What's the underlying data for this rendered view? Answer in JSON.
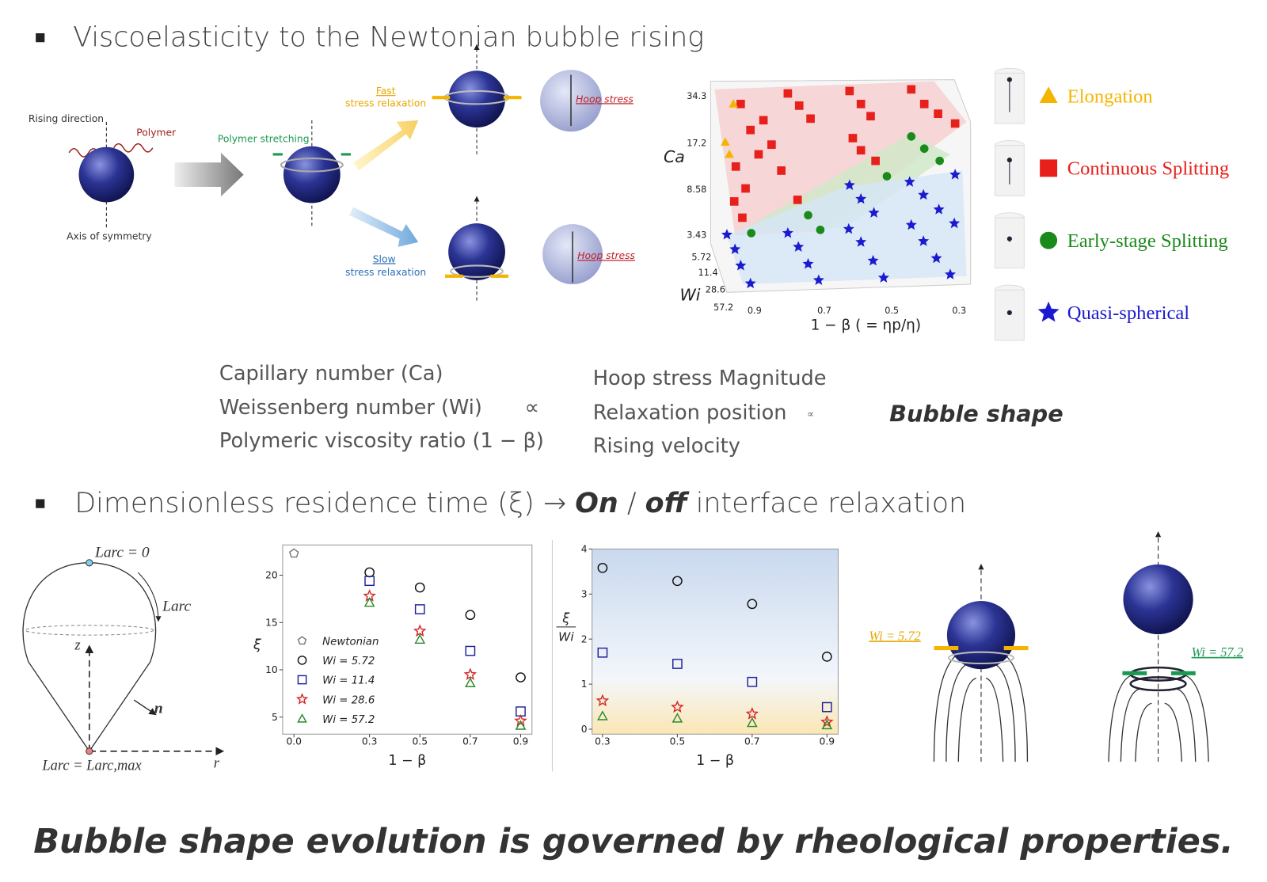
{
  "section1": {
    "bullet": "▪",
    "heading": "Viscoelasticity to the Newtonian bubble rising"
  },
  "schematic": {
    "rising_direction": "Rising direction",
    "polymer": "Polymer",
    "axis": "Axis of symmetry",
    "polymer_stretching": "Polymer stretching",
    "fast": "Fast",
    "fast_relax": "stress relaxation",
    "slow": "Slow",
    "slow_relax": "stress relaxation",
    "hoop_top": "Hoop stress",
    "hoop_bottom": "Hoop stress"
  },
  "phase_diagram": {
    "y_label": "Ca",
    "ca_ticks": [
      "34.3",
      "17.2",
      "8.58",
      "3.43"
    ],
    "wi_label": "Wi",
    "wi_ticks": [
      "5.72",
      "11.4",
      "28.6",
      "57.2"
    ],
    "x_label": "1 − β ( = ηp/η)",
    "x_ticks": [
      "0.9",
      "0.7",
      "0.5",
      "0.3"
    ],
    "legend": [
      {
        "name": "Elongation",
        "color": "#f5b400",
        "marker": "triangle"
      },
      {
        "name": "Continuous Splitting",
        "color": "#e8201c",
        "marker": "square"
      },
      {
        "name": "Early-stage Splitting",
        "color": "#1a8a1a",
        "marker": "circle"
      },
      {
        "name": "Quasi-spherical",
        "color": "#1a1ad0",
        "marker": "star"
      }
    ]
  },
  "relation": {
    "left": [
      "Capillary number (Ca)",
      "Weissenberg number (Wi)",
      "Polymeric viscosity ratio (1 − β)"
    ],
    "symbol1": "∝",
    "middle": [
      "Hoop stress Magnitude",
      "Relaxation position",
      "Rising velocity"
    ],
    "symbol2": "∝",
    "right": "Bubble shape"
  },
  "section2": {
    "bullet": "▪",
    "prefix": "Dimensionless residence time (ξ) →",
    "on": "On",
    "sep": "/",
    "off": "off",
    "suffix": "interface relaxation"
  },
  "geometry": {
    "top": "Larc = 0",
    "arc": "Larc",
    "z": "z",
    "n": "n",
    "r": "r",
    "bottom": "Larc = Larc,max"
  },
  "chart_data": [
    {
      "type": "scatter",
      "x_label": "1 − β",
      "y_label": "ξ",
      "x": [
        0,
        0.3,
        0.5,
        0.7,
        0.9
      ],
      "xlim": [
        -0.045,
        0.945
      ],
      "ylim": [
        3.2,
        23.2
      ],
      "xticks": [
        {
          "value": 0,
          "label": "0.0"
        },
        0.3,
        0.5,
        0.7,
        0.9
      ],
      "yticks": [
        5,
        10,
        15,
        20
      ],
      "series": [
        {
          "name": "Newtonian",
          "color": "#777777",
          "marker": "pentagon",
          "values": [
            22.3,
            null,
            null,
            null,
            null
          ]
        },
        {
          "name": "Wi = 5.72",
          "color": "#111111",
          "marker": "circle",
          "values": [
            null,
            20.3,
            18.7,
            15.8,
            9.2
          ]
        },
        {
          "name": "Wi = 11.4",
          "color": "#1f1f9a",
          "marker": "square",
          "values": [
            null,
            19.4,
            16.4,
            12.0,
            5.6
          ]
        },
        {
          "name": "Wi = 28.6",
          "color": "#d62728",
          "marker": "star",
          "values": [
            null,
            17.8,
            14.1,
            9.5,
            4.6
          ]
        },
        {
          "name": "Wi = 57.2",
          "color": "#2a8a2a",
          "marker": "triangle",
          "values": [
            null,
            17.1,
            13.2,
            8.6,
            4.1
          ]
        }
      ]
    },
    {
      "type": "scatter",
      "x_label": "1 − β",
      "y_label_num": "ξ",
      "y_label_den": "Wi",
      "x": [
        0.3,
        0.5,
        0.7,
        0.9
      ],
      "xlim": [
        0.272,
        0.93
      ],
      "ylim": [
        -0.11,
        4.0
      ],
      "xticks": [
        0.3,
        0.5,
        0.7,
        0.9
      ],
      "yticks": [
        0,
        1,
        2,
        3,
        4
      ],
      "series": [
        {
          "color": "#111111",
          "marker": "circle",
          "values": [
            3.58,
            3.29,
            2.78,
            1.61
          ]
        },
        {
          "color": "#1f1f9a",
          "marker": "square",
          "values": [
            1.7,
            1.45,
            1.05,
            0.49
          ]
        },
        {
          "color": "#d62728",
          "marker": "star",
          "values": [
            0.63,
            0.49,
            0.34,
            0.16
          ]
        },
        {
          "color": "#2a8a2a",
          "marker": "triangle",
          "values": [
            0.29,
            0.24,
            0.14,
            0.09
          ]
        }
      ]
    }
  ],
  "wi_labels": {
    "low": "Wi = 5.72",
    "high": "Wi = 57.2"
  },
  "conclusion": "Bubble shape evolution is governed by rheological properties."
}
